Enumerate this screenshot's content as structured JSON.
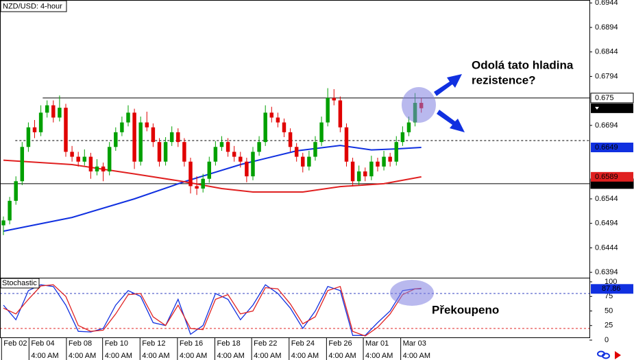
{
  "chart_data": {
    "type": "candlestick",
    "title": "NZD/USD: 4-hour",
    "up_color": "#00a000",
    "down_color": "#e00000",
    "xlim": [
      -0.55,
      93.96
    ],
    "ylim": [
      0.6383,
      0.695
    ],
    "yticks": [
      0.6944,
      0.6894,
      0.6844,
      0.6794,
      0.6694,
      0.6544,
      0.6494,
      0.6444,
      0.6394
    ],
    "xticks": [
      {
        "value": -0.3,
        "label": "Feb 02"
      },
      {
        "value": 4.1,
        "label": "Feb 04"
      },
      {
        "value": 10.1,
        "label": "Feb 08"
      },
      {
        "value": 15.9,
        "label": "Feb 10"
      },
      {
        "value": 21.9,
        "label": "Feb 12"
      },
      {
        "value": 27.9,
        "label": "Feb 16"
      },
      {
        "value": 33.9,
        "label": "Feb 18"
      },
      {
        "value": 39.8,
        "label": "Feb 22"
      },
      {
        "value": 45.8,
        "label": "Feb 24"
      },
      {
        "value": 51.8,
        "label": "Feb 26"
      },
      {
        "value": 57.7,
        "label": "Mar 01"
      },
      {
        "value": 63.7,
        "label": "Mar 03"
      }
    ],
    "time_labels": [
      "4:00 AM",
      "4:00 AM",
      "4:00 AM",
      "4:00 AM",
      "4:00 AM",
      "4:00 AM",
      "4:00 AM",
      "4:00 AM",
      "4:00 AM",
      "4:00 AM",
      "4:00 AM"
    ],
    "ohlc": [
      [
        0.649,
        0.6508,
        0.647,
        0.65
      ],
      [
        0.65,
        0.6548,
        0.6492,
        0.654
      ],
      [
        0.654,
        0.659,
        0.6532,
        0.658
      ],
      [
        0.658,
        0.666,
        0.6572,
        0.665
      ],
      [
        0.665,
        0.67,
        0.664,
        0.669
      ],
      [
        0.669,
        0.6705,
        0.6668,
        0.668
      ],
      [
        0.668,
        0.6735,
        0.6672,
        0.672
      ],
      [
        0.672,
        0.6745,
        0.671,
        0.6735
      ],
      [
        0.6735,
        0.6745,
        0.67,
        0.671
      ],
      [
        0.671,
        0.6755,
        0.6702,
        0.673
      ],
      [
        0.673,
        0.6738,
        0.663,
        0.664
      ],
      [
        0.664,
        0.6652,
        0.662,
        0.663
      ],
      [
        0.663,
        0.664,
        0.661,
        0.662
      ],
      [
        0.662,
        0.6645,
        0.6612,
        0.663
      ],
      [
        0.663,
        0.6638,
        0.6585,
        0.66
      ],
      [
        0.66,
        0.6625,
        0.6592,
        0.661
      ],
      [
        0.661,
        0.6618,
        0.658,
        0.66
      ],
      [
        0.66,
        0.666,
        0.6592,
        0.665
      ],
      [
        0.665,
        0.669,
        0.6642,
        0.668
      ],
      [
        0.668,
        0.6712,
        0.6672,
        0.67
      ],
      [
        0.67,
        0.6735,
        0.6692,
        0.672
      ],
      [
        0.672,
        0.6728,
        0.6605,
        0.662
      ],
      [
        0.662,
        0.6712,
        0.6612,
        0.67
      ],
      [
        0.67,
        0.6722,
        0.6682,
        0.669
      ],
      [
        0.669,
        0.6698,
        0.665,
        0.666
      ],
      [
        0.666,
        0.6668,
        0.661,
        0.662
      ],
      [
        0.662,
        0.667,
        0.6612,
        0.666
      ],
      [
        0.666,
        0.6692,
        0.6652,
        0.668
      ],
      [
        0.668,
        0.6688,
        0.665,
        0.666
      ],
      [
        0.666,
        0.6668,
        0.661,
        0.662
      ],
      [
        0.662,
        0.6628,
        0.6555,
        0.657
      ],
      [
        0.657,
        0.659,
        0.6552,
        0.6565
      ],
      [
        0.6565,
        0.6595,
        0.6557,
        0.6585
      ],
      [
        0.6585,
        0.663,
        0.6577,
        0.662
      ],
      [
        0.662,
        0.6662,
        0.6612,
        0.665
      ],
      [
        0.665,
        0.6672,
        0.6642,
        0.666
      ],
      [
        0.666,
        0.6668,
        0.663,
        0.664
      ],
      [
        0.664,
        0.6652,
        0.662,
        0.663
      ],
      [
        0.663,
        0.664,
        0.6608,
        0.662
      ],
      [
        0.662,
        0.6628,
        0.6578,
        0.659
      ],
      [
        0.659,
        0.665,
        0.6582,
        0.664
      ],
      [
        0.664,
        0.6672,
        0.6632,
        0.666
      ],
      [
        0.666,
        0.6735,
        0.6652,
        0.672
      ],
      [
        0.672,
        0.6732,
        0.67,
        0.671
      ],
      [
        0.671,
        0.672,
        0.669,
        0.67
      ],
      [
        0.67,
        0.6708,
        0.667,
        0.668
      ],
      [
        0.668,
        0.6688,
        0.664,
        0.665
      ],
      [
        0.665,
        0.6658,
        0.662,
        0.663
      ],
      [
        0.663,
        0.6638,
        0.6598,
        0.661
      ],
      [
        0.661,
        0.6642,
        0.6602,
        0.663
      ],
      [
        0.663,
        0.6672,
        0.6622,
        0.666
      ],
      [
        0.666,
        0.6712,
        0.6652,
        0.67
      ],
      [
        0.67,
        0.677,
        0.6692,
        0.675
      ],
      [
        0.675,
        0.6768,
        0.6735,
        0.6745
      ],
      [
        0.6745,
        0.6753,
        0.668,
        0.669
      ],
      [
        0.669,
        0.6698,
        0.661,
        0.662
      ],
      [
        0.662,
        0.6628,
        0.657,
        0.658
      ],
      [
        0.658,
        0.6612,
        0.6572,
        0.66
      ],
      [
        0.66,
        0.6608,
        0.658,
        0.659
      ],
      [
        0.659,
        0.6632,
        0.6582,
        0.662
      ],
      [
        0.662,
        0.6628,
        0.66,
        0.661
      ],
      [
        0.661,
        0.6642,
        0.6602,
        0.663
      ],
      [
        0.663,
        0.6638,
        0.661,
        0.662
      ],
      [
        0.662,
        0.6672,
        0.6612,
        0.666
      ],
      [
        0.666,
        0.6692,
        0.6652,
        0.668
      ],
      [
        0.668,
        0.6712,
        0.6672,
        0.67
      ],
      [
        0.67,
        0.676,
        0.6692,
        0.674
      ],
      [
        0.674,
        0.675,
        0.672,
        0.6729
      ]
    ],
    "ma": [
      {
        "color": "#1030e0",
        "x": [
          0,
          11,
          21,
          29,
          38,
          47,
          54,
          59,
          63,
          67
        ],
        "values": [
          0.6478,
          0.6506,
          0.6544,
          0.6579,
          0.6614,
          0.6642,
          0.6653,
          0.6644,
          0.6646,
          0.6649
        ]
      },
      {
        "color": "#e02020",
        "x": [
          0,
          11,
          21,
          29,
          35,
          40,
          48,
          54,
          61,
          67
        ],
        "values": [
          0.6623,
          0.6614,
          0.6595,
          0.6579,
          0.6565,
          0.6558,
          0.6558,
          0.6569,
          0.6575,
          0.6589
        ]
      }
    ],
    "levels": [
      {
        "value": 0.675,
        "start": 6.3,
        "style": "solid",
        "label_fill": "#ffffff"
      },
      {
        "value": 0.6575,
        "start": -0.55,
        "style": "solid",
        "label_fill": "#000000"
      },
      {
        "value": 0.6663,
        "start": 1.9,
        "style": "dashed"
      }
    ],
    "annotation": [
      "Odolá tato hladina",
      "rezistence?"
    ],
    "stochastic": {
      "label": "Stochastic",
      "annotation": "Překoupeno",
      "ylim": [
        4.7,
        105.9
      ],
      "yticks": [
        0,
        25,
        50,
        75,
        100
      ],
      "levels": [
        {
          "value": 80,
          "color": "#3040c0"
        },
        {
          "value": 20,
          "color": "#e02020"
        }
      ],
      "x": [
        0,
        2,
        4,
        6,
        8,
        10,
        12,
        14,
        16,
        18,
        20,
        22,
        24,
        26,
        28,
        30,
        32,
        34,
        36,
        38,
        40,
        42,
        44,
        46,
        48,
        50,
        52,
        54,
        56,
        58,
        60,
        62,
        64,
        66,
        67
      ],
      "series": [
        {
          "color": "#1030e0",
          "values": [
            60,
            35,
            85,
            95,
            92,
            60,
            15,
            14,
            20,
            60,
            85,
            75,
            30,
            25,
            70,
            10,
            25,
            80,
            70,
            35,
            60,
            95,
            80,
            55,
            20,
            50,
            92,
            85,
            8,
            8,
            30,
            50,
            85,
            88,
            87.86
          ]
        },
        {
          "color": "#e02020",
          "values": [
            55,
            45,
            70,
            93,
            95,
            75,
            25,
            15,
            17,
            45,
            78,
            80,
            40,
            25,
            60,
            20,
            18,
            70,
            78,
            45,
            50,
            90,
            88,
            62,
            28,
            40,
            85,
            92,
            15,
            7,
            22,
            45,
            78,
            88,
            89
          ]
        }
      ]
    }
  }
}
